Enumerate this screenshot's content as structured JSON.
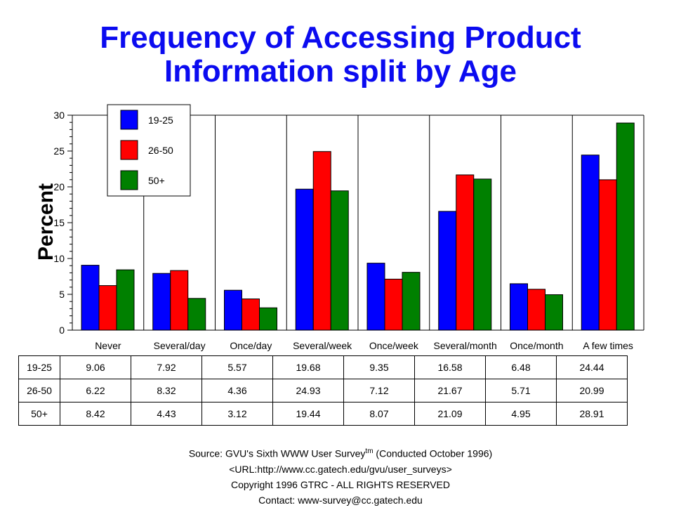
{
  "title_lines": [
    "Frequency of Accessing Product",
    "Information split by Age"
  ],
  "chart_data": {
    "type": "bar",
    "title": "Frequency of Accessing Product Information split by Age",
    "xlabel": "",
    "ylabel": "Percent",
    "ylim": [
      0,
      30
    ],
    "yticks": [
      0,
      5,
      10,
      15,
      20,
      25,
      30
    ],
    "categories": [
      "Never",
      "Several/day",
      "Once/day",
      "Several/week",
      "Once/week",
      "Several/month",
      "Once/month",
      "A few times"
    ],
    "series": [
      {
        "name": "19-25",
        "color": "#0000ff",
        "values": [
          9.06,
          7.92,
          5.57,
          19.68,
          9.35,
          16.58,
          6.48,
          24.44
        ]
      },
      {
        "name": "26-50",
        "color": "#ff0000",
        "values": [
          6.22,
          8.32,
          4.36,
          24.93,
          7.12,
          21.67,
          5.71,
          20.99
        ]
      },
      {
        "name": "50+",
        "color": "#008000",
        "values": [
          8.42,
          4.43,
          3.12,
          19.44,
          8.07,
          21.09,
          4.95,
          28.91
        ]
      }
    ],
    "legend_position": "top-left"
  },
  "table": {
    "rows": [
      {
        "label": "19-25",
        "cells": [
          "9.06",
          "7.92",
          "5.57",
          "19.68",
          "9.35",
          "16.58",
          "6.48",
          "24.44"
        ]
      },
      {
        "label": "26-50",
        "cells": [
          "6.22",
          "8.32",
          "4.36",
          "24.93",
          "7.12",
          "21.67",
          "5.71",
          "20.99"
        ]
      },
      {
        "label": "50+",
        "cells": [
          "8.42",
          "4.43",
          "3.12",
          "19.44",
          "8.07",
          "21.09",
          "4.95",
          "28.91"
        ]
      }
    ]
  },
  "source": {
    "line1_prefix": "Source: GVU's Sixth WWW User Survey",
    "line1_sup": "tm",
    "line1_suffix": "  (Conducted October 1996)",
    "line2": "<URL:http://www.cc.gatech.edu/gvu/user_surveys>",
    "line3": "Copyright 1996 GTRC -  ALL RIGHTS RESERVED",
    "line4": "Contact: www-survey@cc.gatech.edu"
  }
}
